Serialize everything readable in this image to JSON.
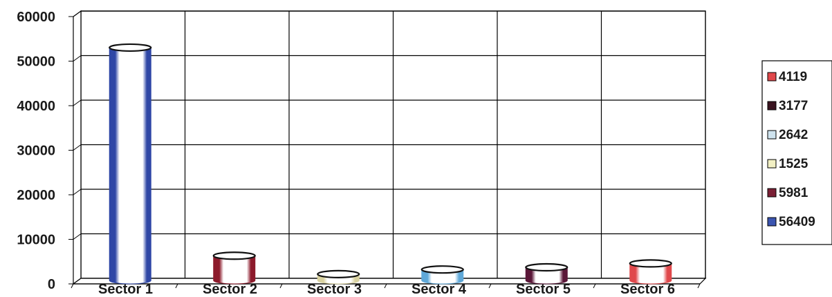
{
  "chart_data": {
    "type": "bar",
    "categories": [
      "Sector 1",
      "Sector 2",
      "Sector 3",
      "Sector 4",
      "Sector 5",
      "Sector 6"
    ],
    "values": [
      56409,
      5981,
      1525,
      2642,
      3177,
      4119
    ],
    "ylim": [
      0,
      60000
    ],
    "yticks": [
      "60000",
      "50000",
      "40000",
      "30000",
      "20000",
      "10000",
      "0"
    ],
    "ytick_values": [
      60000,
      50000,
      40000,
      30000,
      20000,
      10000,
      0
    ],
    "grid": true,
    "legend_position": "right",
    "legend": [
      {
        "label": "4119",
        "color": "#e0484b"
      },
      {
        "label": "3177",
        "color": "#3a1420"
      },
      {
        "label": "2642",
        "color": "#cfe3ee"
      },
      {
        "label": "1525",
        "color": "#f2f0c4"
      },
      {
        "label": "5981",
        "color": "#7a1f35"
      },
      {
        "label": "56409",
        "color": "#3b55b0"
      }
    ],
    "bar_colors": [
      "#2f47a6",
      "#8c1a2b",
      "#d9d2a0",
      "#5fa8d8",
      "#5a1738",
      "#e0484b"
    ]
  }
}
